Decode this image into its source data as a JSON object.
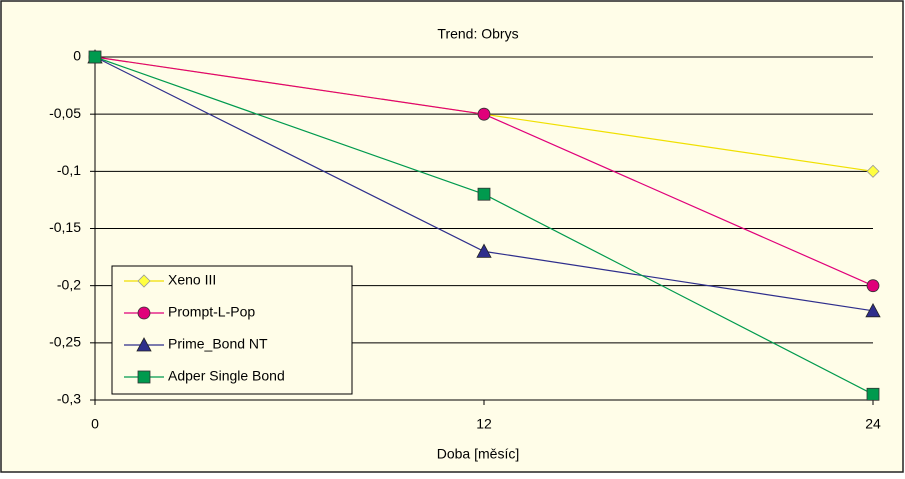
{
  "chart_data": {
    "type": "line",
    "title": "Trend: Obrys",
    "x_label": "Doba [měsíc]",
    "x": [
      0,
      12,
      24
    ],
    "series": [
      {
        "name": "Xeno III",
        "color": "#f0e000",
        "marker": "diamond",
        "values": [
          0,
          -0.05,
          -0.1
        ]
      },
      {
        "name": "Prompt-L-Pop",
        "color": "#e0007a",
        "marker": "circle",
        "values": [
          0,
          -0.05,
          -0.2
        ]
      },
      {
        "name": "Prime_Bond NT",
        "color": "#2e2e8c",
        "marker": "triangle",
        "values": [
          0,
          -0.17,
          -0.222
        ]
      },
      {
        "name": "Adper Single Bond",
        "color": "#009a4e",
        "marker": "square",
        "values": [
          0,
          -0.12,
          -0.295
        ]
      }
    ],
    "xlim": [
      0,
      24
    ],
    "xticks": [
      0,
      12,
      24
    ],
    "ylim": [
      -0.3,
      0
    ],
    "yticks": [
      {
        "value": -0.3,
        "label": "-0,3"
      },
      {
        "value": -0.25,
        "label": "-0,25"
      },
      {
        "value": -0.2,
        "label": "-0,2"
      },
      {
        "value": -0.15,
        "label": "-0,15"
      },
      {
        "value": -0.1,
        "label": "-0,1"
      },
      {
        "value": -0.05,
        "label": "-0,05"
      },
      0
    ],
    "grid": true,
    "legend": "lower left"
  }
}
